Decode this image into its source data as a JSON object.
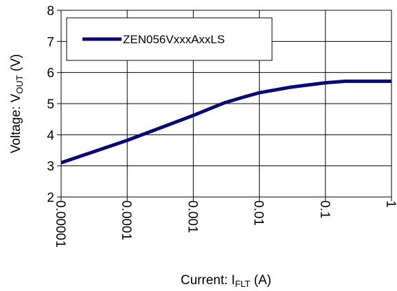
{
  "chart_data": {
    "type": "line",
    "x_scale": "log",
    "x_tick_labels": [
      "0.00001",
      "0.0001",
      "0.001",
      "0.01",
      "0.1",
      "1"
    ],
    "x_ticks": [
      1e-05,
      0.0001,
      0.001,
      0.01,
      0.1,
      1
    ],
    "y_tick_labels": [
      "2",
      "3",
      "4",
      "5",
      "6",
      "7",
      "8"
    ],
    "y_ticks": [
      2,
      3,
      4,
      5,
      6,
      7,
      8
    ],
    "xlim": [
      1e-05,
      1
    ],
    "ylim": [
      2,
      8
    ],
    "xlabel": {
      "main": "Current: I",
      "sub": "FLT",
      "tail": " (A)"
    },
    "ylabel": {
      "main": "Voltage: V",
      "sub": "OUT",
      "tail": " (V)"
    },
    "grid": true,
    "legend_position": "top-left",
    "series": [
      {
        "name": "ZEN056VxxxAxxLS",
        "color": "#0a0a6e",
        "x": [
          1e-05,
          0.0001,
          0.001,
          0.003,
          0.006,
          0.01,
          0.03,
          0.1,
          0.2,
          0.5,
          1
        ],
        "y": [
          3.1,
          3.82,
          4.62,
          5.03,
          5.22,
          5.35,
          5.53,
          5.67,
          5.72,
          5.72,
          5.72
        ]
      }
    ]
  }
}
